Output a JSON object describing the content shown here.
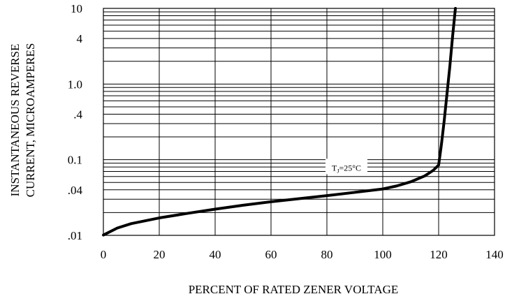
{
  "chart_data": {
    "type": "line",
    "xlabel": "PERCENT OF RATED ZENER VOLTAGE",
    "ylabel_lines": [
      "INSTANTANEOUS REVERSE",
      "CURRENT, MICROAMPERES"
    ],
    "x_ticks": [
      0,
      20,
      40,
      60,
      80,
      100,
      120,
      140
    ],
    "x_tick_labels": [
      "0",
      "20",
      "40",
      "60",
      "80",
      "100",
      "120",
      "140"
    ],
    "y_scale": "log",
    "y_ticks": [
      0.01,
      0.04,
      0.1,
      0.4,
      1.0,
      4,
      10
    ],
    "y_tick_labels": [
      ".01",
      ".04",
      "0.1",
      ".4",
      "1.0",
      "4",
      "10"
    ],
    "xlim": [
      0,
      140
    ],
    "ylim": [
      0.01,
      10
    ],
    "grid": true,
    "annotation": {
      "subscript": "J",
      "x": 87,
      "y": 0.078
    },
    "annotation_parts": {
      "prefix": "T",
      "subscript": "J",
      "suffix": "=25°C"
    },
    "series": [
      {
        "x": [
          0,
          5,
          10,
          20,
          30,
          40,
          50,
          60,
          70,
          80,
          90,
          100,
          105,
          110,
          115,
          118,
          120,
          121,
          122,
          123,
          124,
          125,
          126
        ],
        "y": [
          0.0101,
          0.0125,
          0.0143,
          0.017,
          0.0195,
          0.0222,
          0.025,
          0.0278,
          0.0305,
          0.0335,
          0.037,
          0.041,
          0.045,
          0.051,
          0.061,
          0.072,
          0.085,
          0.16,
          0.33,
          0.75,
          1.7,
          4.3,
          10
        ]
      }
    ]
  }
}
